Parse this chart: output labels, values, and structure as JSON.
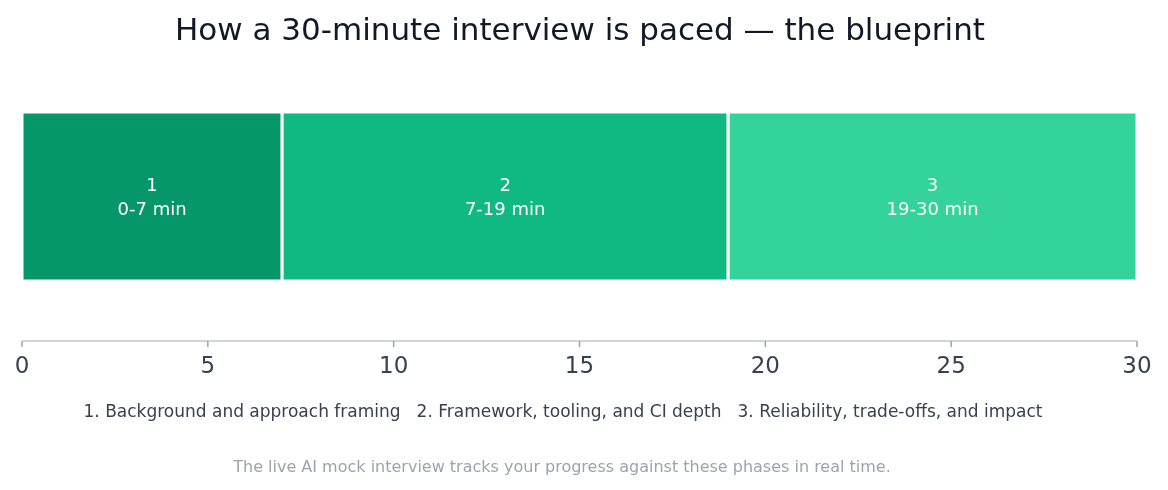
{
  "chart_data": {
    "type": "bar",
    "orientation": "horizontal",
    "stacked": true,
    "title": "How a 30-minute interview is paced — the blueprint",
    "categories": [
      null
    ],
    "series": [
      {
        "name": "1",
        "color": "#059669",
        "values": [
          7
        ],
        "value_labels": [
          "0-7 min"
        ]
      },
      {
        "name": "2",
        "color": "#10b981",
        "values": [
          12
        ],
        "value_labels": [
          "7-19 min"
        ]
      },
      {
        "name": "3",
        "color": "#34d399",
        "values": [
          11
        ],
        "value_labels": [
          "19-30 min"
        ]
      }
    ],
    "xlim": [
      0,
      30
    ],
    "xticks": [
      0,
      5,
      10,
      15,
      20,
      25,
      30
    ],
    "annotations": [
      "1. Background and approach framing",
      "2. Framework, tooling, and CI depth",
      "3. Reliability, trade-offs, and impact",
      "The live AI mock interview tracks your progress against these phases in real time."
    ]
  }
}
